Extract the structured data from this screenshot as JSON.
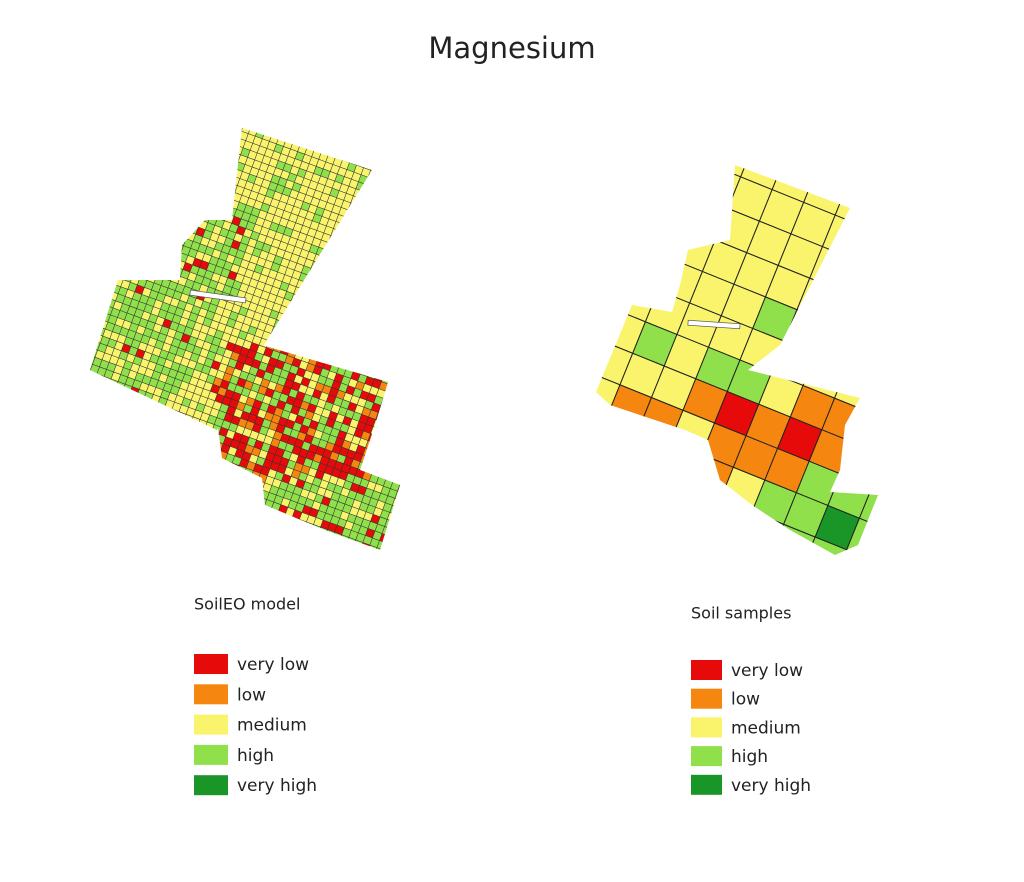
{
  "title": "Magnesium",
  "panels": [
    {
      "legend_title": "SoilEO model",
      "legend": [
        {
          "label": "very low",
          "color": "#e60a0a"
        },
        {
          "label": "low",
          "color": "#f5860f"
        },
        {
          "label": "medium",
          "color": "#f9f46c"
        },
        {
          "label": "high",
          "color": "#8fe04b"
        },
        {
          "label": "very high",
          "color": "#1a9628"
        }
      ]
    },
    {
      "legend_title": "Soil samples",
      "legend": [
        {
          "label": "very low",
          "color": "#e60a0a"
        },
        {
          "label": "low",
          "color": "#f5860f"
        },
        {
          "label": "medium",
          "color": "#f9f46c"
        },
        {
          "label": "high",
          "color": "#8fe04b"
        },
        {
          "label": "very high",
          "color": "#1a9628"
        }
      ]
    }
  ]
}
